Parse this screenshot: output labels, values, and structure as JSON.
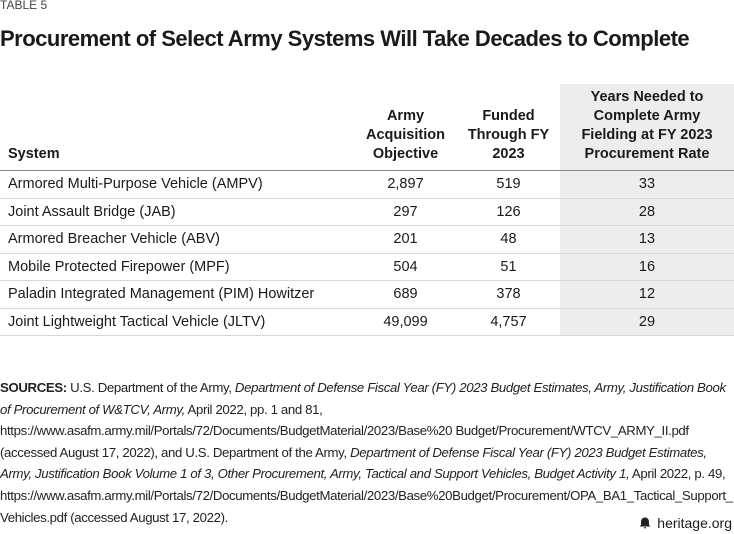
{
  "label": "TABLE 5",
  "title": "Procurement of Select Army Systems Will Take Decades to Complete",
  "table": {
    "headers": [
      "System",
      "Army Acquisition Objective",
      "Funded Through FY 2023",
      "Years Needed to Complete Army Fielding at FY 2023 Procurement Rate"
    ],
    "rows": [
      [
        "Armored Multi-Purpose Vehicle (AMPV)",
        "2,897",
        "519",
        "33"
      ],
      [
        "Joint Assault Bridge (JAB)",
        "297",
        "126",
        "28"
      ],
      [
        "Armored Breacher Vehicle (ABV)",
        "201",
        "48",
        "13"
      ],
      [
        "Mobile Protected Firepower (MPF)",
        "504",
        "51",
        "16"
      ],
      [
        "Paladin Integrated Management (PIM) Howitzer",
        "689",
        "378",
        "12"
      ],
      [
        "Joint Lightweight Tactical Vehicle (JLTV)",
        "49,099",
        "4,757",
        "29"
      ]
    ],
    "highlight_column": 3
  },
  "sources": {
    "label": "SOURCES:",
    "parts": [
      {
        "text": "U.S. Department of the Army, ",
        "italic": false
      },
      {
        "text": "Department of Defense Fiscal Year (FY) 2023 Budget Estimates, Army, Justification Book of Procurement of W&TCV, Army,",
        "italic": true
      },
      {
        "text": " April 2022, pp. 1 and 81, https://www.asafm.army.mil/Portals/72/Documents/BudgetMaterial/2023/Base%20 Budget/Procurement/WTCV_ARMY_II.pdf (accessed August 17, 2022), and U.S. Department of the Army, ",
        "italic": false
      },
      {
        "text": "Department of Defense Fiscal Year (FY) 2023 Budget Estimates, Army, Justification Book Volume 1 of 3, Other Procurement, Army, Tactical and Support Vehicles, Budget Activity 1,",
        "italic": true
      },
      {
        "text": " April 2022, p. 49, https://www.asafm.army.mil/Portals/72/Documents/BudgetMaterial/2023/Base%20Budget/Procurement/OPA_BA1_Tactical_Support_  Vehicles.pdf  (accessed August 17, 2022).",
        "italic": false
      }
    ]
  },
  "footer": "heritage.org"
}
